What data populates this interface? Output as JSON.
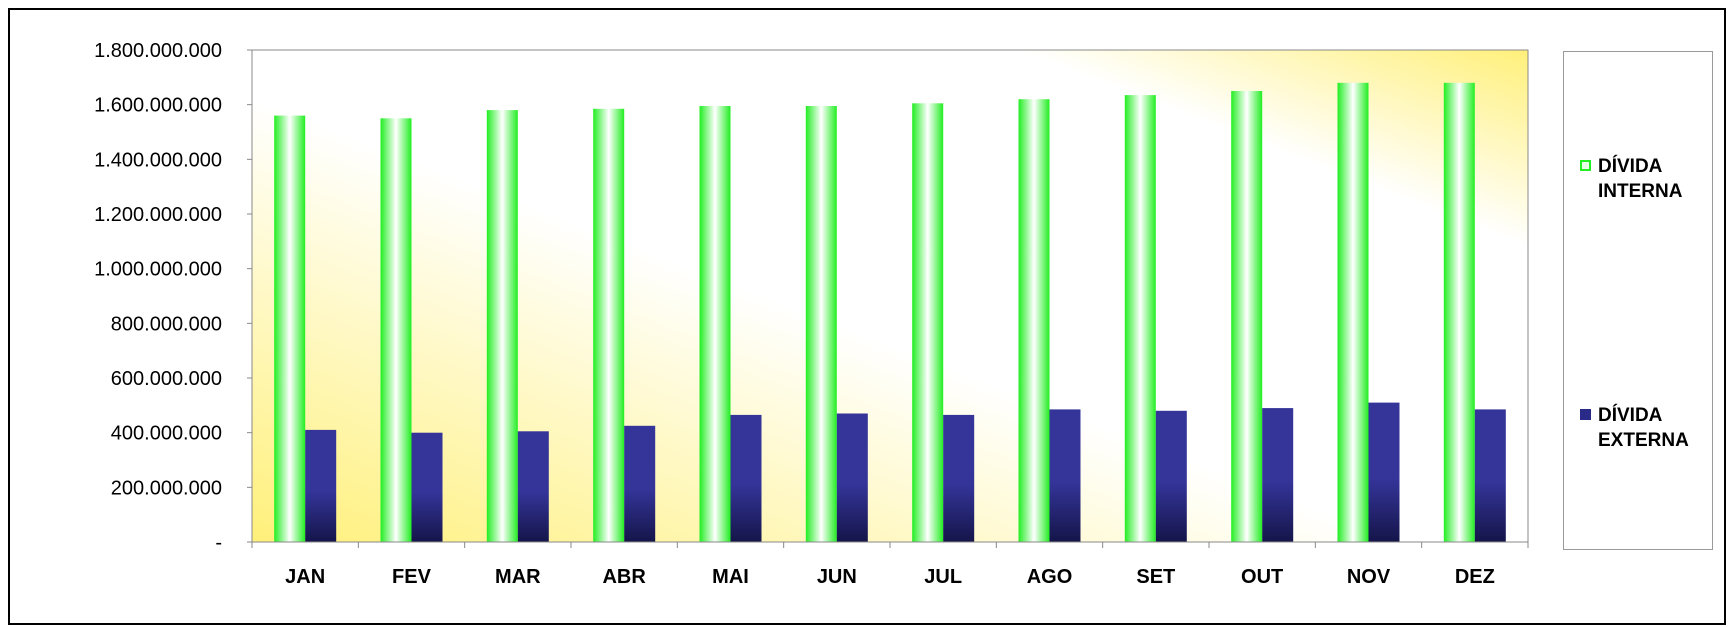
{
  "colors": {
    "interna": "#22ee22",
    "interna_light": "#ffffff",
    "externa": "#343499",
    "externa_dark": "#15154a",
    "plot_bg_yellow": "#fff07a",
    "plot_bg_white": "#ffffff"
  },
  "chart_data": {
    "type": "bar",
    "title": "",
    "xlabel": "",
    "ylabel": "",
    "categories": [
      "JAN",
      "FEV",
      "MAR",
      "ABR",
      "MAI",
      "JUN",
      "JUL",
      "AGO",
      "SET",
      "OUT",
      "NOV",
      "DEZ"
    ],
    "ylim": [
      0,
      1800000000
    ],
    "yticks": [
      0,
      200000000,
      400000000,
      600000000,
      800000000,
      1000000000,
      1200000000,
      1400000000,
      1600000000,
      1800000000
    ],
    "ytick_labels": [
      "-",
      "200.000.000",
      "400.000.000",
      "600.000.000",
      "800.000.000",
      "1.000.000.000",
      "1.200.000.000",
      "1.400.000.000",
      "1.600.000.000",
      "1.800.000.000"
    ],
    "grid": false,
    "legend_position": "right",
    "series": [
      {
        "name": "DÍVIDA INTERNA",
        "values": [
          1560000000,
          1550000000,
          1580000000,
          1585000000,
          1595000000,
          1595000000,
          1605000000,
          1620000000,
          1635000000,
          1650000000,
          1680000000,
          1680000000
        ]
      },
      {
        "name": "DÍVIDA EXTERNA",
        "values": [
          410000000,
          400000000,
          405000000,
          425000000,
          465000000,
          470000000,
          465000000,
          485000000,
          480000000,
          490000000,
          510000000,
          485000000
        ]
      }
    ]
  },
  "legend": {
    "items": [
      {
        "line1": "DÍVIDA",
        "line2": "INTERNA"
      },
      {
        "line1": "DÍVIDA",
        "line2": "EXTERNA"
      }
    ]
  }
}
